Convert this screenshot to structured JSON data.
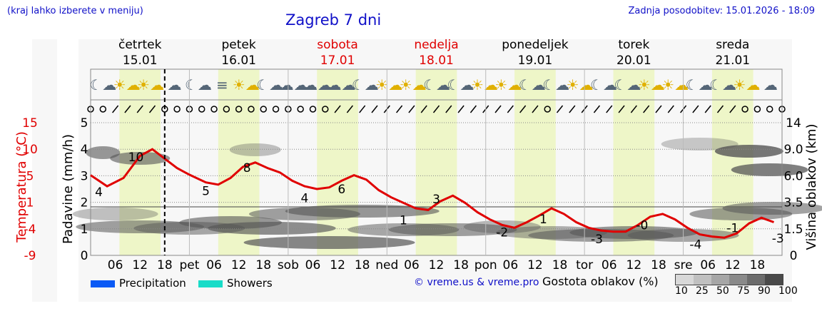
{
  "header": {
    "hint": "(kraj lahko izberete v meniju)",
    "title": "Zagreb 7 dni",
    "updated": "Zadnja posodobitev: 15.01.2026 - 18:09",
    "credit": "© vreme.us & vreme.pro"
  },
  "days": [
    {
      "name": "četrtek",
      "date": "15.01",
      "weekend": false
    },
    {
      "name": "petek",
      "date": "16.01",
      "weekend": false
    },
    {
      "name": "sobota",
      "date": "17.01",
      "weekend": true
    },
    {
      "name": "nedelja",
      "date": "18.01",
      "weekend": true
    },
    {
      "name": "ponedeljek",
      "date": "19.01",
      "weekend": false
    },
    {
      "name": "torek",
      "date": "20.01",
      "weekend": false
    },
    {
      "name": "sreda",
      "date": "21.01",
      "weekend": false
    }
  ],
  "x_ticks": [
    {
      "label": "06",
      "t": 6
    },
    {
      "label": "12",
      "t": 12
    },
    {
      "label": "18",
      "t": 18
    },
    {
      "label": "pet",
      "t": 24
    },
    {
      "label": "06",
      "t": 30
    },
    {
      "label": "12",
      "t": 36
    },
    {
      "label": "18",
      "t": 42
    },
    {
      "label": "sob",
      "t": 48
    },
    {
      "label": "06",
      "t": 54
    },
    {
      "label": "12",
      "t": 60
    },
    {
      "label": "18",
      "t": 66
    },
    {
      "label": "ned",
      "t": 72
    },
    {
      "label": "06",
      "t": 78
    },
    {
      "label": "12",
      "t": 84
    },
    {
      "label": "18",
      "t": 90
    },
    {
      "label": "pon",
      "t": 96
    },
    {
      "label": "06",
      "t": 102
    },
    {
      "label": "12",
      "t": 108
    },
    {
      "label": "18",
      "t": 114
    },
    {
      "label": "tor",
      "t": 120
    },
    {
      "label": "06",
      "t": 126
    },
    {
      "label": "12",
      "t": 132
    },
    {
      "label": "18",
      "t": 138
    },
    {
      "label": "sre",
      "t": 144
    },
    {
      "label": "06",
      "t": 150
    },
    {
      "label": "12",
      "t": 156
    },
    {
      "label": "18",
      "t": 162
    }
  ],
  "axes": {
    "temperature": {
      "label": "Temperatura (°C)",
      "ticks": [
        "15",
        "10",
        "5",
        "1",
        "-4",
        "-9"
      ],
      "color": "#e00000"
    },
    "precipitation": {
      "label": "Padavine (mm/h)",
      "ticks": [
        "5",
        "4",
        "3",
        "2",
        "1",
        "0"
      ]
    },
    "cloud_height": {
      "label": "Višina oblakov (km)",
      "ticks": [
        "14",
        "9.0",
        "6.0",
        "3.5",
        "1.5",
        "0"
      ]
    }
  },
  "legend": {
    "precipitation": {
      "label": "Precipitation",
      "color": "#0a5af5"
    },
    "showers": {
      "label": "Showers",
      "color": "#19dcc8"
    },
    "cloud_density": {
      "label": "Gostota oblakov (%)",
      "ticks": [
        "10",
        "25",
        "50",
        "75",
        "90",
        "100"
      ],
      "colors": [
        "#d8d8d8",
        "#c0c0c0",
        "#a6a6a6",
        "#8a8a8a",
        "#6c6c6c",
        "#4a4a4a"
      ]
    }
  },
  "icons": [
    "moon-cloud",
    "sun-cloud",
    "sun-cloud",
    "cloud",
    "moon-cloud",
    "fog",
    "sun-cloud",
    "moon-cloud",
    "clouds",
    "clouds",
    "clouds",
    "moon-cloud",
    "sun-cloud",
    "sun-cloud",
    "moon-cloud",
    "moon-cloud",
    "sun-cloud",
    "sun-cloud",
    "moon-cloud",
    "moon-cloud",
    "sun-cloud",
    "moon-cloud",
    "moon-cloud",
    "sun-cloud",
    "sun-cloud",
    "moon-cloud",
    "moon-cloud",
    "sun-cloud",
    "cloud"
  ],
  "chart_data": {
    "type": "line",
    "title": "Zagreb 7 dni",
    "x_unit": "hours from 15.01 00:00",
    "now_marker_t": 18,
    "series": [
      {
        "name": "Temperatura (°C)",
        "color": "#e00000",
        "x": [
          0,
          4,
          8,
          12,
          15,
          18,
          21,
          24,
          28,
          31,
          34,
          37,
          40,
          43,
          46,
          49,
          52,
          55,
          58,
          61,
          64,
          67,
          70,
          73,
          76,
          79,
          82,
          85,
          88,
          91,
          94,
          97,
          100,
          103,
          106,
          109,
          112,
          115,
          118,
          121,
          124,
          127,
          130,
          133,
          136,
          139,
          142,
          145,
          148,
          151,
          154,
          157,
          160,
          163,
          166
        ],
        "y": [
          5.5,
          3.5,
          5.0,
          9.0,
          10.2,
          8.5,
          6.8,
          5.6,
          4.2,
          3.8,
          5.0,
          7.0,
          7.8,
          6.8,
          6.0,
          4.5,
          3.5,
          3.0,
          3.3,
          4.5,
          5.5,
          4.7,
          2.8,
          1.5,
          0.5,
          -0.5,
          -0.8,
          0.8,
          1.8,
          0.5,
          -1.2,
          -2.5,
          -3.5,
          -4.0,
          -3.0,
          -1.8,
          -0.5,
          -1.5,
          -3.0,
          -4.0,
          -4.5,
          -4.7,
          -4.7,
          -3.5,
          -2.0,
          -1.5,
          -2.5,
          -4.0,
          -5.2,
          -5.6,
          -5.8,
          -5.0,
          -3.2,
          -2.2,
          -3.0
        ]
      },
      {
        "name": "Padavine (mm/h)",
        "color": "#0a5af5",
        "x": [],
        "y": []
      }
    ],
    "temp_labels": [
      {
        "t": 2,
        "v": "4",
        "y": 2.5
      },
      {
        "t": 11,
        "v": "10",
        "y": 8.8
      },
      {
        "t": 28,
        "v": "5",
        "y": 2.7
      },
      {
        "t": 38,
        "v": "8",
        "y": 6.9
      },
      {
        "t": 52,
        "v": "4",
        "y": 1.4
      },
      {
        "t": 61,
        "v": "6",
        "y": 3.0
      },
      {
        "t": 76,
        "v": "1",
        "y": -2.6
      },
      {
        "t": 84,
        "v": "3",
        "y": 1.2
      },
      {
        "t": 100,
        "v": "-2",
        "y": -4.8
      },
      {
        "t": 110,
        "v": "1",
        "y": -2.4
      },
      {
        "t": 123,
        "v": "-3",
        "y": -6.0
      },
      {
        "t": 134,
        "v": "-0",
        "y": -3.5
      },
      {
        "t": 147,
        "v": "-4",
        "y": -7.0
      },
      {
        "t": 156,
        "v": "-1",
        "y": -4.0
      },
      {
        "t": 167,
        "v": "-3",
        "y": -5.9
      }
    ],
    "temp_range": [
      -9,
      15
    ],
    "precip_range": [
      0,
      5
    ],
    "cloud_height_km_ticks": [
      0,
      1.5,
      3.5,
      6.0,
      9.0,
      14
    ],
    "grid": true,
    "legend_position": "bottom"
  }
}
